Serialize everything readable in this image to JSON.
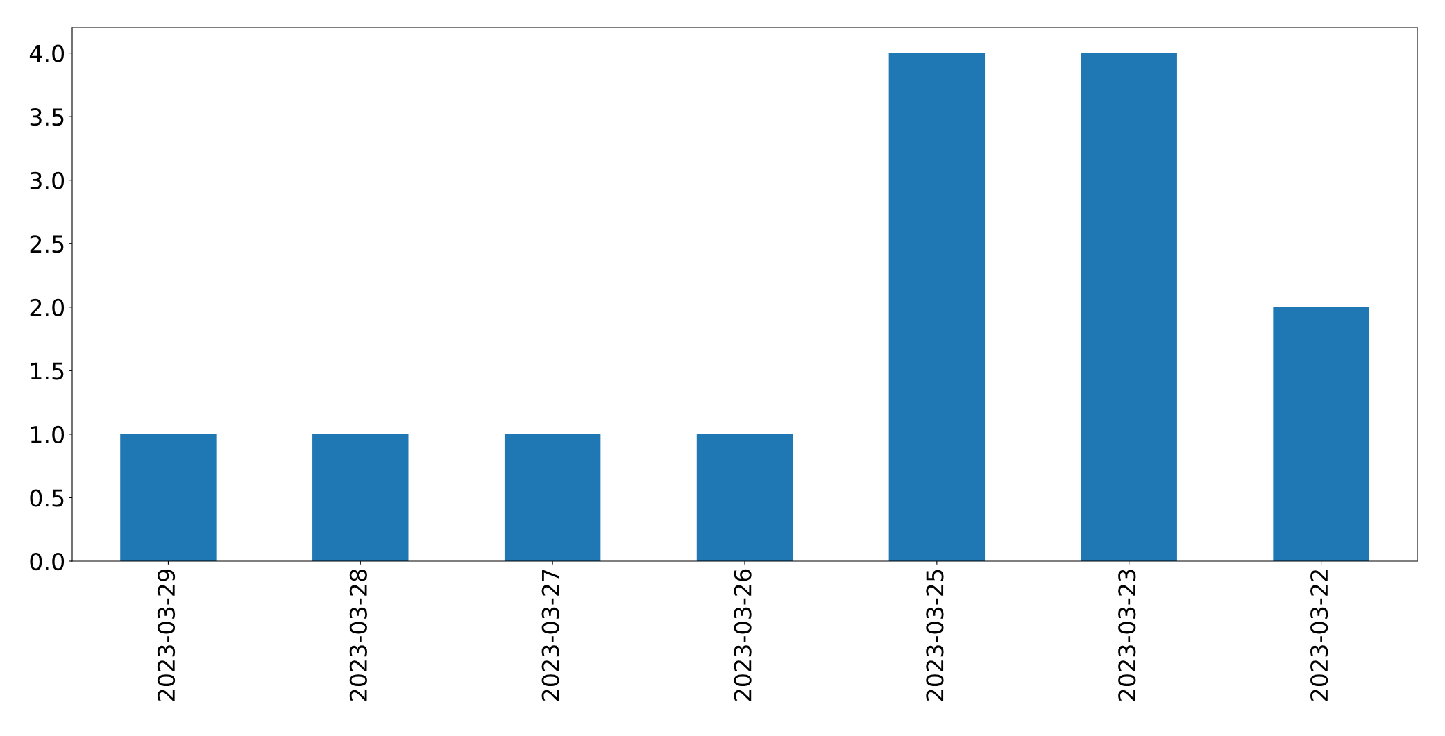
{
  "chart_data": {
    "type": "bar",
    "categories": [
      "2023-03-29",
      "2023-03-28",
      "2023-03-27",
      "2023-03-26",
      "2023-03-25",
      "2023-03-23",
      "2023-03-22"
    ],
    "values": [
      1,
      1,
      1,
      1,
      4,
      4,
      2
    ],
    "color": "#1f77b4",
    "ylim": [
      0,
      4.2
    ],
    "yticks": [
      {
        "value": 0,
        "label": "0.0"
      },
      {
        "value": 0.5,
        "label": "0.5"
      },
      {
        "value": 1,
        "label": "1.0"
      },
      {
        "value": 1.5,
        "label": "1.5"
      },
      {
        "value": 2,
        "label": "2.0"
      },
      {
        "value": 2.5,
        "label": "2.5"
      },
      {
        "value": 3,
        "label": "3.0"
      },
      {
        "value": 3.5,
        "label": "3.5"
      },
      {
        "value": 4,
        "label": "4.0"
      }
    ],
    "grid": false,
    "legend": false
  }
}
